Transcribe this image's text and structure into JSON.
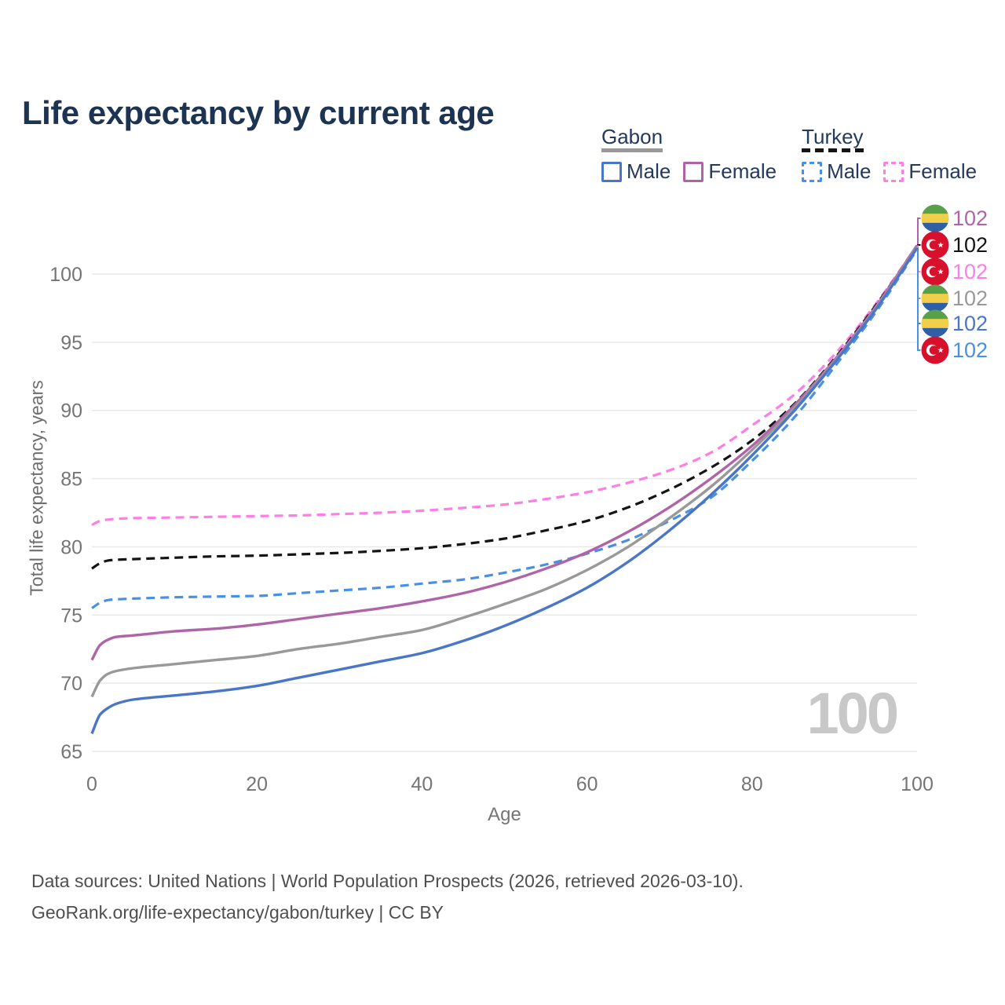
{
  "title": "Life expectancy by current age",
  "current_age_watermark": "100",
  "legend": {
    "groups": [
      {
        "id": "gabon",
        "label": "Gabon",
        "style": "solid",
        "line_series": "gabon-both",
        "items": [
          {
            "label": "Male",
            "series": "gabon-male"
          },
          {
            "label": "Female",
            "series": "gabon-female"
          }
        ]
      },
      {
        "id": "turkey",
        "label": "Turkey",
        "style": "dashed",
        "line_series": "turkey-both",
        "items": [
          {
            "label": "Male",
            "series": "turkey-male"
          },
          {
            "label": "Female",
            "series": "turkey-female"
          }
        ]
      }
    ]
  },
  "footer": {
    "line1": "Data sources: United Nations | World Population Prospects (2026, retrieved 2026-03-10).",
    "line2": "GeoRank.org/life-expectancy/gabon/turkey | CC BY"
  },
  "chart_data": {
    "type": "line",
    "title": "Life expectancy by current age",
    "xlabel": "Age",
    "ylabel": "Total life expectancy, years",
    "xlim": [
      0,
      100
    ],
    "ylim": [
      65,
      100
    ],
    "x_ticks": [
      0,
      20,
      40,
      60,
      80,
      100
    ],
    "y_ticks": [
      65,
      70,
      75,
      80,
      85,
      90,
      95,
      100
    ],
    "grid": "horizontal",
    "legend_position": "top-right",
    "ages": [
      0,
      1,
      2,
      3,
      5,
      10,
      15,
      20,
      25,
      30,
      35,
      40,
      45,
      50,
      55,
      60,
      65,
      70,
      75,
      80,
      85,
      90,
      95,
      100
    ],
    "series": [
      {
        "id": "gabon-male",
        "country": "Gabon",
        "group": "Male",
        "color": "#4a76c8",
        "dash": "solid",
        "flag": "gabon",
        "end_label": "102",
        "values": [
          66.3,
          67.7,
          68.2,
          68.5,
          68.8,
          69.1,
          69.4,
          69.8,
          70.4,
          71.0,
          71.6,
          72.2,
          73.1,
          74.2,
          75.5,
          77.0,
          78.9,
          81.2,
          83.8,
          86.7,
          89.9,
          93.5,
          97.4,
          101.9
        ]
      },
      {
        "id": "gabon-female",
        "country": "Gabon",
        "group": "Female",
        "color": "#b064a8",
        "dash": "solid",
        "flag": "gabon",
        "end_label": "102",
        "values": [
          71.7,
          72.8,
          73.2,
          73.4,
          73.5,
          73.8,
          74.0,
          74.3,
          74.7,
          75.1,
          75.5,
          76.0,
          76.6,
          77.4,
          78.4,
          79.6,
          81.1,
          82.9,
          85.0,
          87.4,
          90.3,
          93.7,
          97.6,
          102.1
        ]
      },
      {
        "id": "gabon-both",
        "country": "Gabon",
        "group": "Both sexes",
        "color": "#999999",
        "dash": "solid",
        "flag": "gabon",
        "end_label": "102",
        "values": [
          69.0,
          70.2,
          70.7,
          70.9,
          71.1,
          71.4,
          71.7,
          72.0,
          72.5,
          72.9,
          73.4,
          73.9,
          74.8,
          75.8,
          76.9,
          78.3,
          80.0,
          82.1,
          84.4,
          87.1,
          90.1,
          93.6,
          97.5,
          102.0
        ]
      },
      {
        "id": "turkey-male",
        "country": "Turkey",
        "group": "Male",
        "color": "#4a90e2",
        "dash": "dashed",
        "flag": "turkey",
        "end_label": "102",
        "values": [
          75.5,
          75.9,
          76.1,
          76.15,
          76.2,
          76.3,
          76.35,
          76.4,
          76.6,
          76.8,
          77.0,
          77.3,
          77.6,
          78.1,
          78.7,
          79.5,
          80.5,
          81.9,
          83.6,
          86.3,
          89.4,
          93.2,
          97.2,
          101.8
        ]
      },
      {
        "id": "turkey-female",
        "country": "Turkey",
        "group": "Female",
        "color": "#ff7ee3",
        "dash": "dashed",
        "flag": "turkey",
        "end_label": "102",
        "values": [
          81.6,
          81.9,
          82.0,
          82.05,
          82.1,
          82.15,
          82.2,
          82.25,
          82.3,
          82.4,
          82.5,
          82.65,
          82.85,
          83.1,
          83.5,
          84.0,
          84.7,
          85.6,
          86.9,
          88.9,
          91.1,
          94.1,
          97.8,
          102.1
        ]
      },
      {
        "id": "turkey-both",
        "country": "Turkey",
        "group": "Both sexes",
        "color": "#141414",
        "dash": "dashed",
        "flag": "turkey",
        "end_label": "102",
        "values": [
          78.4,
          78.8,
          79.0,
          79.05,
          79.1,
          79.2,
          79.3,
          79.35,
          79.45,
          79.55,
          79.7,
          79.9,
          80.2,
          80.6,
          81.2,
          81.9,
          82.9,
          84.2,
          85.8,
          87.8,
          90.4,
          93.8,
          97.7,
          102.0
        ]
      }
    ],
    "end_label_order": [
      "gabon-female",
      "turkey-both",
      "turkey-female",
      "gabon-both",
      "gabon-male",
      "turkey-male"
    ],
    "flag_colors": {
      "gabon": [
        "#58a04a",
        "#f2cf4b",
        "#2f5fa6"
      ],
      "turkey": {
        "field": "#d7112c",
        "emblem": "#ffffff"
      }
    }
  }
}
